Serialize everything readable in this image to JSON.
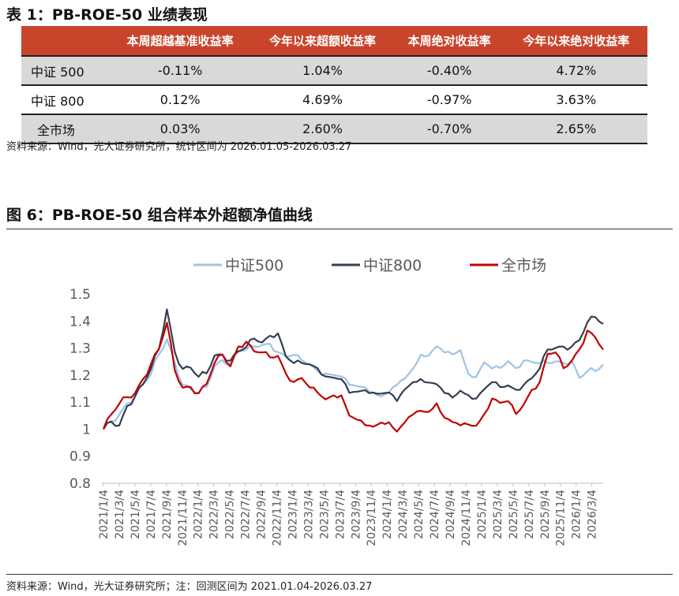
{
  "table": {
    "title": "表 1：PB-ROE-50 业绩表现",
    "headers": [
      "",
      "本周超越基准收益率",
      "今年以来超额收益率",
      "本周绝对收益率",
      "今年以来绝对收益率"
    ],
    "rows": [
      [
        "中证 500",
        "-0.11%",
        "1.04%",
        "-0.40%",
        "4.72%"
      ],
      [
        "中证 800",
        "0.12%",
        "4.69%",
        "-0.97%",
        "3.63%"
      ],
      [
        "全市场",
        "0.03%",
        "2.60%",
        "-0.70%",
        "2.65%"
      ]
    ],
    "header_color": "#c8452c",
    "note": "资料来源：Wind，光大证券研究所，统计区间为 2026.01.05-2026.03.27"
  },
  "figure": {
    "title": "图 6：PB-ROE-50 组合样本外超额净值曲线",
    "note": "资料来源：Wind，光大证券研究所；注：回测区间为 2021.01.04-2026.03.27"
  },
  "chart_data": {
    "type": "line",
    "ylim": [
      0.8,
      1.5
    ],
    "yticks": [
      "1.5",
      "1.4",
      "1.3",
      "1.2",
      "1.1",
      "1",
      "0.9",
      "0.8"
    ],
    "xticks": [
      "2021/1/4",
      "2021/3/4",
      "2021/5/4",
      "2021/7/4",
      "2021/9/4",
      "2021/11/4",
      "2022/1/4",
      "2022/3/4",
      "2022/5/4",
      "2022/7/4",
      "2022/9/4",
      "2022/11/4",
      "2023/1/4",
      "2023/3/4",
      "2023/5/4",
      "2023/7/4",
      "2023/9/4",
      "2023/11/4",
      "2024/1/4",
      "2024/3/4",
      "2024/5/4",
      "2024/7/4",
      "2024/9/4",
      "2024/11/4",
      "2025/1/4",
      "2025/3/4",
      "2025/5/4",
      "2025/7/4",
      "2025/9/4",
      "2025/11/4",
      "2026/1/4",
      "2026/3/4"
    ],
    "legend": "top",
    "grid": false,
    "x_start": "2021/1/4",
    "x_end": "2026/3/27",
    "x_step": "monthly",
    "series": [
      {
        "name": "中证500",
        "color": "#9dc3e6",
        "values": [
          1.0,
          1.03,
          1.05,
          1.09,
          1.12,
          1.17,
          1.21,
          1.28,
          1.33,
          1.24,
          1.16,
          1.15,
          1.14,
          1.16,
          1.23,
          1.25,
          1.24,
          1.29,
          1.3,
          1.31,
          1.31,
          1.31,
          1.28,
          1.27,
          1.28,
          1.26,
          1.24,
          1.21,
          1.2,
          1.2,
          1.2,
          1.17,
          1.16,
          1.15,
          1.13,
          1.12,
          1.14,
          1.17,
          1.19,
          1.22,
          1.27,
          1.27,
          1.31,
          1.29,
          1.28,
          1.29,
          1.2,
          1.19,
          1.25,
          1.23,
          1.23,
          1.25,
          1.22,
          1.25,
          1.25,
          1.25,
          1.25,
          1.25,
          1.24,
          1.25,
          1.19,
          1.22,
          1.22,
          1.24
        ]
      },
      {
        "name": "中证800",
        "color": "#333f50",
        "values": [
          1.0,
          1.03,
          1.01,
          1.08,
          1.12,
          1.17,
          1.23,
          1.3,
          1.44,
          1.28,
          1.22,
          1.23,
          1.2,
          1.21,
          1.27,
          1.27,
          1.25,
          1.29,
          1.31,
          1.34,
          1.32,
          1.34,
          1.35,
          1.27,
          1.25,
          1.25,
          1.24,
          1.22,
          1.19,
          1.19,
          1.19,
          1.14,
          1.14,
          1.14,
          1.13,
          1.13,
          1.14,
          1.11,
          1.15,
          1.17,
          1.18,
          1.17,
          1.17,
          1.14,
          1.12,
          1.14,
          1.12,
          1.11,
          1.15,
          1.18,
          1.16,
          1.16,
          1.14,
          1.16,
          1.19,
          1.23,
          1.3,
          1.3,
          1.3,
          1.3,
          1.33,
          1.4,
          1.42,
          1.39
        ]
      },
      {
        "name": "全市场",
        "color": "#c00000",
        "values": [
          1.0,
          1.06,
          1.1,
          1.12,
          1.13,
          1.18,
          1.24,
          1.3,
          1.4,
          1.22,
          1.15,
          1.15,
          1.13,
          1.17,
          1.25,
          1.28,
          1.23,
          1.3,
          1.32,
          1.29,
          1.29,
          1.27,
          1.27,
          1.2,
          1.17,
          1.19,
          1.16,
          1.14,
          1.11,
          1.12,
          1.12,
          1.05,
          1.04,
          1.02,
          1.01,
          1.02,
          1.02,
          0.99,
          1.03,
          1.06,
          1.07,
          1.06,
          1.09,
          1.04,
          1.03,
          1.02,
          1.02,
          1.01,
          1.05,
          1.11,
          1.1,
          1.11,
          1.06,
          1.09,
          1.14,
          1.17,
          1.28,
          1.29,
          1.23,
          1.25,
          1.29,
          1.36,
          1.34,
          1.3
        ]
      }
    ]
  }
}
